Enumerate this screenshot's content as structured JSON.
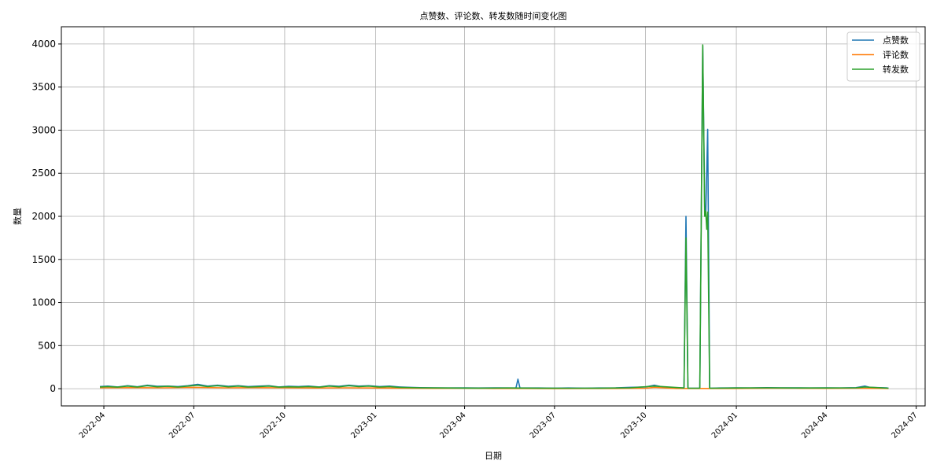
{
  "chart_data": {
    "type": "line",
    "title": "点赞数、评论数、转发数随时间变化图",
    "xlabel": "日期",
    "ylabel": "数量",
    "grid": true,
    "legend_position": "top-right",
    "xlim": [
      "2022-02-17",
      "2024-07-10"
    ],
    "ylim": [
      -200,
      4200
    ],
    "x_ticks": [
      "2022-04-01",
      "2022-07-01",
      "2022-10-01",
      "2023-01-01",
      "2023-04-01",
      "2023-07-01",
      "2023-10-01",
      "2024-01-01",
      "2024-04-01",
      "2024-07-01"
    ],
    "x_tick_labels": [
      "2022-04",
      "2022-07",
      "2022-10",
      "2023-01",
      "2023-04",
      "2023-07",
      "2023-10",
      "2024-01",
      "2024-04",
      "2024-07"
    ],
    "y_ticks": [
      0,
      500,
      1000,
      1500,
      2000,
      2500,
      3000,
      3500,
      4000
    ],
    "y_tick_labels": [
      "0",
      "500",
      "1000",
      "1500",
      "2000",
      "2500",
      "3000",
      "3500",
      "4000"
    ],
    "series": [
      {
        "name": "点赞数",
        "color": "#1f77b4",
        "points": [
          [
            "2022-03-28",
            25
          ],
          [
            "2022-04-05",
            30
          ],
          [
            "2022-04-15",
            20
          ],
          [
            "2022-04-25",
            35
          ],
          [
            "2022-05-05",
            22
          ],
          [
            "2022-05-15",
            40
          ],
          [
            "2022-05-25",
            28
          ],
          [
            "2022-06-05",
            30
          ],
          [
            "2022-06-15",
            25
          ],
          [
            "2022-06-25",
            35
          ],
          [
            "2022-07-05",
            50
          ],
          [
            "2022-07-15",
            30
          ],
          [
            "2022-07-25",
            40
          ],
          [
            "2022-08-05",
            28
          ],
          [
            "2022-08-15",
            35
          ],
          [
            "2022-08-25",
            25
          ],
          [
            "2022-09-05",
            30
          ],
          [
            "2022-09-15",
            35
          ],
          [
            "2022-09-25",
            20
          ],
          [
            "2022-10-05",
            28
          ],
          [
            "2022-10-15",
            25
          ],
          [
            "2022-10-25",
            30
          ],
          [
            "2022-11-05",
            20
          ],
          [
            "2022-11-15",
            35
          ],
          [
            "2022-11-25",
            28
          ],
          [
            "2022-12-05",
            40
          ],
          [
            "2022-12-15",
            30
          ],
          [
            "2022-12-25",
            35
          ],
          [
            "2023-01-05",
            25
          ],
          [
            "2023-01-15",
            30
          ],
          [
            "2023-01-25",
            20
          ],
          [
            "2023-02-05",
            15
          ],
          [
            "2023-02-15",
            12
          ],
          [
            "2023-03-01",
            10
          ],
          [
            "2023-03-15",
            8
          ],
          [
            "2023-04-01",
            10
          ],
          [
            "2023-04-15",
            8
          ],
          [
            "2023-05-01",
            10
          ],
          [
            "2023-05-15",
            8
          ],
          [
            "2023-05-23",
            10
          ],
          [
            "2023-05-25",
            110
          ],
          [
            "2023-05-27",
            10
          ],
          [
            "2023-06-15",
            8
          ],
          [
            "2023-07-01",
            6
          ],
          [
            "2023-07-15",
            8
          ],
          [
            "2023-08-01",
            6
          ],
          [
            "2023-08-15",
            8
          ],
          [
            "2023-09-01",
            10
          ],
          [
            "2023-09-15",
            15
          ],
          [
            "2023-10-01",
            20
          ],
          [
            "2023-10-10",
            40
          ],
          [
            "2023-10-20",
            15
          ],
          [
            "2023-10-30",
            10
          ],
          [
            "2023-11-09",
            10
          ],
          [
            "2023-11-11",
            2000
          ],
          [
            "2023-11-13",
            5
          ],
          [
            "2023-11-25",
            5
          ],
          [
            "2023-11-28",
            3980
          ],
          [
            "2023-11-30",
            2100
          ],
          [
            "2023-12-01",
            2000
          ],
          [
            "2023-12-03",
            3010
          ],
          [
            "2023-12-05",
            5
          ],
          [
            "2023-12-15",
            8
          ],
          [
            "2024-01-01",
            10
          ],
          [
            "2024-01-15",
            8
          ],
          [
            "2024-02-01",
            12
          ],
          [
            "2024-02-15",
            10
          ],
          [
            "2024-03-01",
            10
          ],
          [
            "2024-03-15",
            8
          ],
          [
            "2024-04-01",
            10
          ],
          [
            "2024-04-15",
            8
          ],
          [
            "2024-05-01",
            12
          ],
          [
            "2024-05-10",
            30
          ],
          [
            "2024-05-15",
            15
          ],
          [
            "2024-06-01",
            10
          ],
          [
            "2024-06-03",
            5
          ]
        ]
      },
      {
        "name": "评论数",
        "color": "#ff7f0e",
        "points": [
          [
            "2022-03-28",
            10
          ],
          [
            "2022-05-01",
            12
          ],
          [
            "2022-06-01",
            10
          ],
          [
            "2022-07-01",
            15
          ],
          [
            "2022-08-01",
            10
          ],
          [
            "2022-09-01",
            12
          ],
          [
            "2022-10-01",
            10
          ],
          [
            "2022-11-01",
            8
          ],
          [
            "2022-12-01",
            10
          ],
          [
            "2023-01-01",
            8
          ],
          [
            "2023-02-01",
            5
          ],
          [
            "2023-03-01",
            4
          ],
          [
            "2023-04-01",
            5
          ],
          [
            "2023-05-01",
            3
          ],
          [
            "2023-06-01",
            3
          ],
          [
            "2023-07-01",
            2
          ],
          [
            "2023-08-01",
            3
          ],
          [
            "2023-09-01",
            3
          ],
          [
            "2023-10-01",
            5
          ],
          [
            "2023-10-10",
            15
          ],
          [
            "2023-11-01",
            3
          ],
          [
            "2023-12-01",
            3
          ],
          [
            "2024-01-01",
            3
          ],
          [
            "2024-02-01",
            5
          ],
          [
            "2024-03-01",
            5
          ],
          [
            "2024-04-01",
            4
          ],
          [
            "2024-05-01",
            5
          ],
          [
            "2024-06-03",
            3
          ]
        ]
      },
      {
        "name": "转发数",
        "color": "#2ca02c",
        "points": [
          [
            "2022-03-28",
            20
          ],
          [
            "2022-04-05",
            25
          ],
          [
            "2022-04-15",
            18
          ],
          [
            "2022-04-25",
            30
          ],
          [
            "2022-05-05",
            20
          ],
          [
            "2022-05-15",
            35
          ],
          [
            "2022-05-25",
            22
          ],
          [
            "2022-06-05",
            28
          ],
          [
            "2022-06-15",
            20
          ],
          [
            "2022-06-25",
            30
          ],
          [
            "2022-07-05",
            40
          ],
          [
            "2022-07-15",
            25
          ],
          [
            "2022-07-25",
            35
          ],
          [
            "2022-08-05",
            22
          ],
          [
            "2022-08-15",
            30
          ],
          [
            "2022-08-25",
            20
          ],
          [
            "2022-09-05",
            25
          ],
          [
            "2022-09-15",
            30
          ],
          [
            "2022-09-25",
            18
          ],
          [
            "2022-10-05",
            22
          ],
          [
            "2022-10-15",
            20
          ],
          [
            "2022-10-25",
            25
          ],
          [
            "2022-11-05",
            18
          ],
          [
            "2022-11-15",
            30
          ],
          [
            "2022-11-25",
            22
          ],
          [
            "2022-12-05",
            35
          ],
          [
            "2022-12-15",
            25
          ],
          [
            "2022-12-25",
            30
          ],
          [
            "2023-01-05",
            20
          ],
          [
            "2023-01-15",
            25
          ],
          [
            "2023-01-25",
            15
          ],
          [
            "2023-02-15",
            10
          ],
          [
            "2023-03-15",
            8
          ],
          [
            "2023-04-15",
            6
          ],
          [
            "2023-05-15",
            8
          ],
          [
            "2023-06-15",
            6
          ],
          [
            "2023-07-15",
            5
          ],
          [
            "2023-08-15",
            6
          ],
          [
            "2023-09-15",
            10
          ],
          [
            "2023-10-10",
            30
          ],
          [
            "2023-11-09",
            8
          ],
          [
            "2023-11-11",
            1750
          ],
          [
            "2023-11-13",
            5
          ],
          [
            "2023-11-25",
            5
          ],
          [
            "2023-11-28",
            3990
          ],
          [
            "2023-11-30",
            2000
          ],
          [
            "2023-12-01",
            2060
          ],
          [
            "2023-12-02",
            1850
          ],
          [
            "2023-12-03",
            2050
          ],
          [
            "2023-12-05",
            5
          ],
          [
            "2024-01-01",
            8
          ],
          [
            "2024-02-01",
            10
          ],
          [
            "2024-03-01",
            8
          ],
          [
            "2024-04-01",
            8
          ],
          [
            "2024-05-01",
            10
          ],
          [
            "2024-05-10",
            20
          ],
          [
            "2024-06-03",
            5
          ]
        ]
      }
    ]
  }
}
